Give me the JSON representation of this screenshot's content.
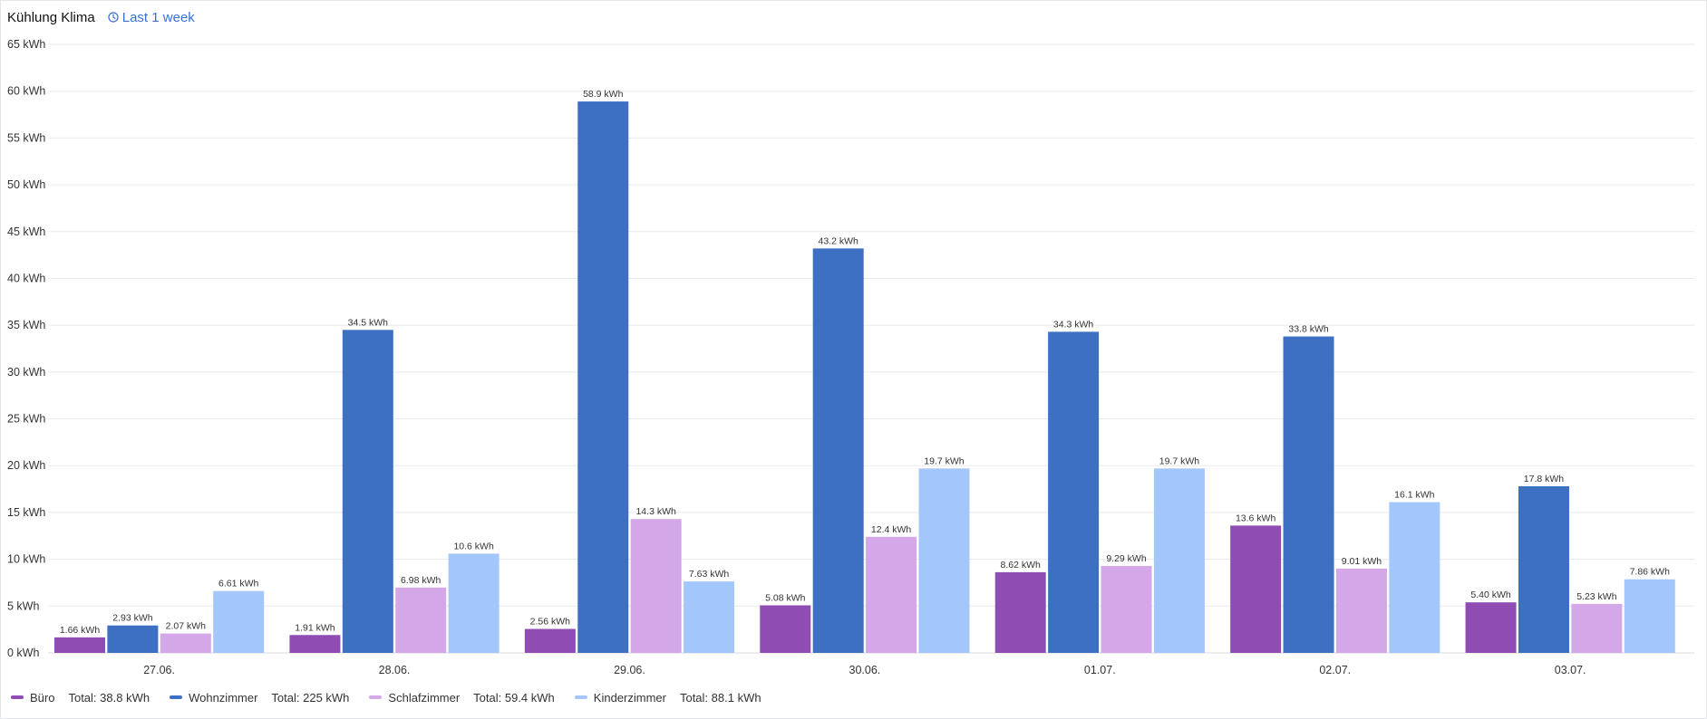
{
  "panel": {
    "title": "Kühlung Klima",
    "time_range_label": "Last 1 week",
    "time_icon": "clock-icon"
  },
  "chart_data": {
    "type": "bar",
    "title": "",
    "xlabel": "",
    "ylabel": "",
    "ylim": [
      0,
      65
    ],
    "y_ticks": [
      0,
      5,
      10,
      15,
      20,
      25,
      30,
      35,
      40,
      45,
      50,
      55,
      60,
      65
    ],
    "y_tick_labels": [
      "0 kWh",
      "5 kWh",
      "10 kWh",
      "15 kWh",
      "20 kWh",
      "25 kWh",
      "30 kWh",
      "35 kWh",
      "40 kWh",
      "45 kWh",
      "50 kWh",
      "55 kWh",
      "60 kWh",
      "65 kWh"
    ],
    "grid": true,
    "legend_position": "bottom-left",
    "categories": [
      "27.06.",
      "28.06.",
      "29.06.",
      "30.06.",
      "01.07.",
      "02.07.",
      "03.07."
    ],
    "series": [
      {
        "name": "Büro",
        "color": "#8f4db3",
        "total_label": "Total: 38.8 kWh",
        "values": [
          1.66,
          1.91,
          2.56,
          5.08,
          8.62,
          13.6,
          5.4
        ],
        "labels": [
          "1.66 kWh",
          "1.91 kWh",
          "2.56 kWh",
          "5.08 kWh",
          "8.62 kWh",
          "13.6 kWh",
          "5.40 kWh"
        ]
      },
      {
        "name": "Wohnzimmer",
        "color": "#3d70c2",
        "total_label": "Total: 225 kWh",
        "values": [
          2.93,
          34.5,
          58.9,
          43.2,
          34.3,
          33.8,
          17.8
        ],
        "labels": [
          "2.93 kWh",
          "34.5 kWh",
          "58.9 kWh",
          "43.2 kWh",
          "34.3 kWh",
          "33.8 kWh",
          "17.8 kWh"
        ]
      },
      {
        "name": "Schlafzimmer",
        "color": "#d4a8e8",
        "total_label": "Total: 59.4 kWh",
        "values": [
          2.07,
          6.98,
          14.3,
          12.4,
          9.29,
          9.01,
          5.23
        ],
        "labels": [
          "2.07 kWh",
          "6.98 kWh",
          "14.3 kWh",
          "12.4 kWh",
          "9.29 kWh",
          "9.01 kWh",
          "5.23 kWh"
        ]
      },
      {
        "name": "Kinderzimmer",
        "color": "#a3c6fb",
        "total_label": "Total: 88.1 kWh",
        "values": [
          6.61,
          10.6,
          7.63,
          19.7,
          19.7,
          16.1,
          7.86
        ],
        "labels": [
          "6.61 kWh",
          "10.6 kWh",
          "7.63 kWh",
          "19.7 kWh",
          "19.7 kWh",
          "16.1 kWh",
          "7.86 kWh"
        ]
      }
    ]
  }
}
